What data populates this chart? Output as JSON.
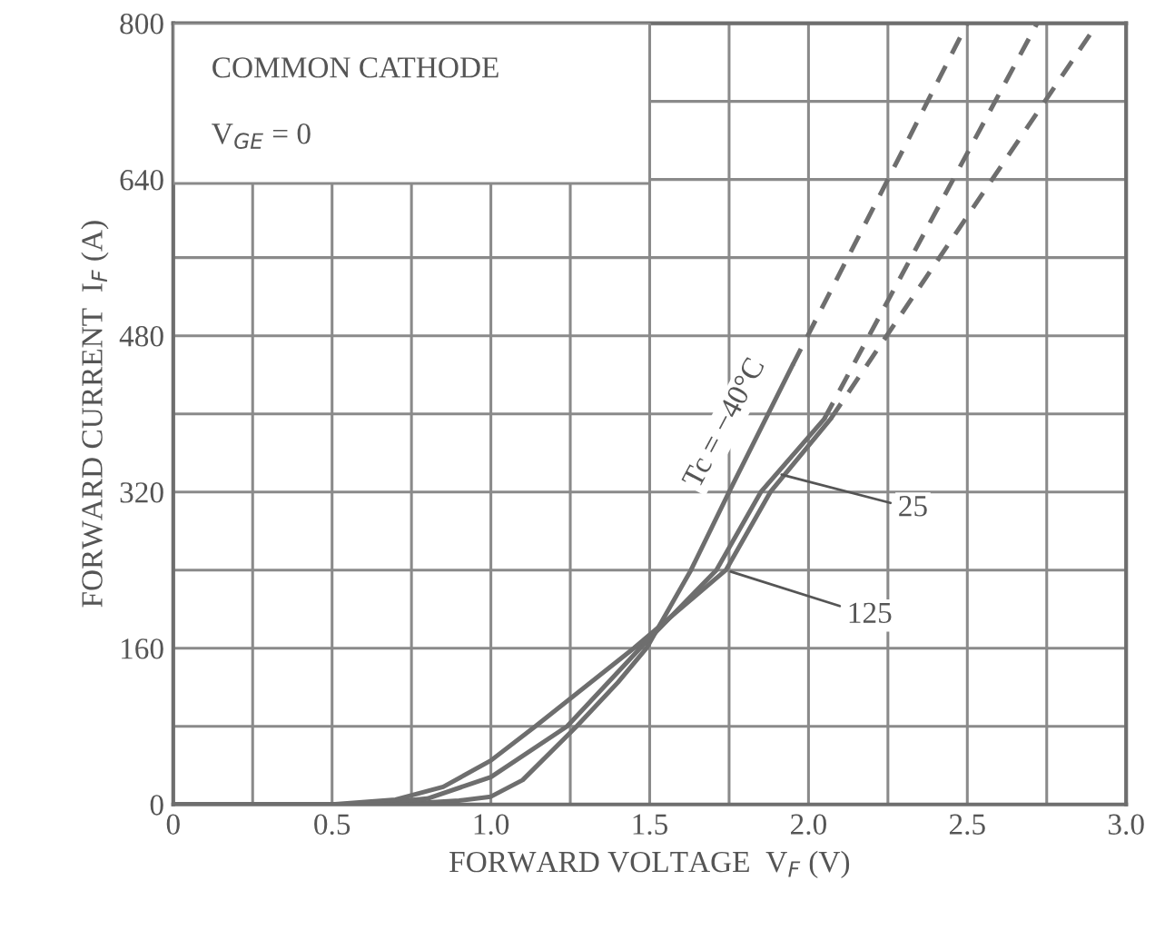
{
  "chart_data": {
    "type": "line",
    "xlabel": "FORWARD VOLTAGE  V$_{F}$ (V)",
    "ylabel": "FORWARD CURRENT  I$_{F}$ (A)",
    "xlim": [
      0,
      3.0
    ],
    "ylim": [
      0,
      800
    ],
    "xticks": [
      0,
      {
        "value": 0.25,
        "label": null
      },
      0.5,
      {
        "value": 0.75,
        "label": null
      },
      {
        "value": 1,
        "label": "1.0"
      },
      {
        "value": 1.25,
        "label": null
      },
      1.5,
      {
        "value": 1.75,
        "label": null
      },
      {
        "value": 2,
        "label": "2.0"
      },
      {
        "value": 2.25,
        "label": null
      },
      2.5,
      {
        "value": 2.75,
        "label": null
      },
      {
        "value": 3,
        "label": "3.0"
      }
    ],
    "yticks": [
      0,
      {
        "value": 80,
        "label": null
      },
      160,
      {
        "value": 240,
        "label": null
      },
      320,
      {
        "value": 400,
        "label": null
      },
      480,
      {
        "value": 560,
        "label": null
      },
      640,
      {
        "value": 720,
        "label": null
      },
      800
    ],
    "grid": true,
    "legend": false,
    "series": [
      {
        "color": "#6e6e6e",
        "line_style": "solid",
        "x": [
          0,
          0.5,
          0.7,
          0.9,
          1.0,
          1.1,
          1.27,
          1.4,
          1.49,
          1.63,
          1.75,
          1.95
        ],
        "values": [
          0,
          0,
          0,
          4,
          8,
          25,
          80,
          125,
          160,
          240,
          320,
          450
        ]
      },
      {
        "color": "#6e6e6e",
        "line_style": "dashed",
        "x": [
          1.95,
          2.25,
          2.5
        ],
        "values": [
          450,
          640,
          800
        ]
      },
      {
        "color": "#6e6e6e",
        "line_style": "solid",
        "x": [
          0,
          0.6,
          0.8,
          1.0,
          1.24,
          1.47,
          1.71,
          1.85,
          2.05
        ],
        "values": [
          0,
          0,
          6,
          28,
          80,
          160,
          240,
          320,
          395
        ]
      },
      {
        "color": "#6e6e6e",
        "line_style": "dashed",
        "x": [
          2.05,
          2.72
        ],
        "values": [
          395,
          800
        ]
      },
      {
        "color": "#6e6e6e",
        "line_style": "solid",
        "x": [
          0,
          0.5,
          0.7,
          0.85,
          1.0,
          1.14,
          1.45,
          1.74,
          1.88,
          2.07
        ],
        "values": [
          0,
          0,
          5,
          18,
          45,
          80,
          160,
          240,
          320,
          395
        ]
      },
      {
        "color": "#6e6e6e",
        "line_style": "dashed",
        "x": [
          2.07,
          2.91
        ],
        "values": [
          395,
          800
        ]
      }
    ],
    "annotations": [
      "COMMON CATHODE",
      "V$_{GE}$ = 0",
      {
        "text": "Tc = −40°C",
        "x": 1.85,
        "y": 390
      },
      {
        "text": "25",
        "x": 1.9,
        "y": 339
      },
      {
        "text": "125",
        "x": 1.74,
        "y": 240
      }
    ]
  }
}
